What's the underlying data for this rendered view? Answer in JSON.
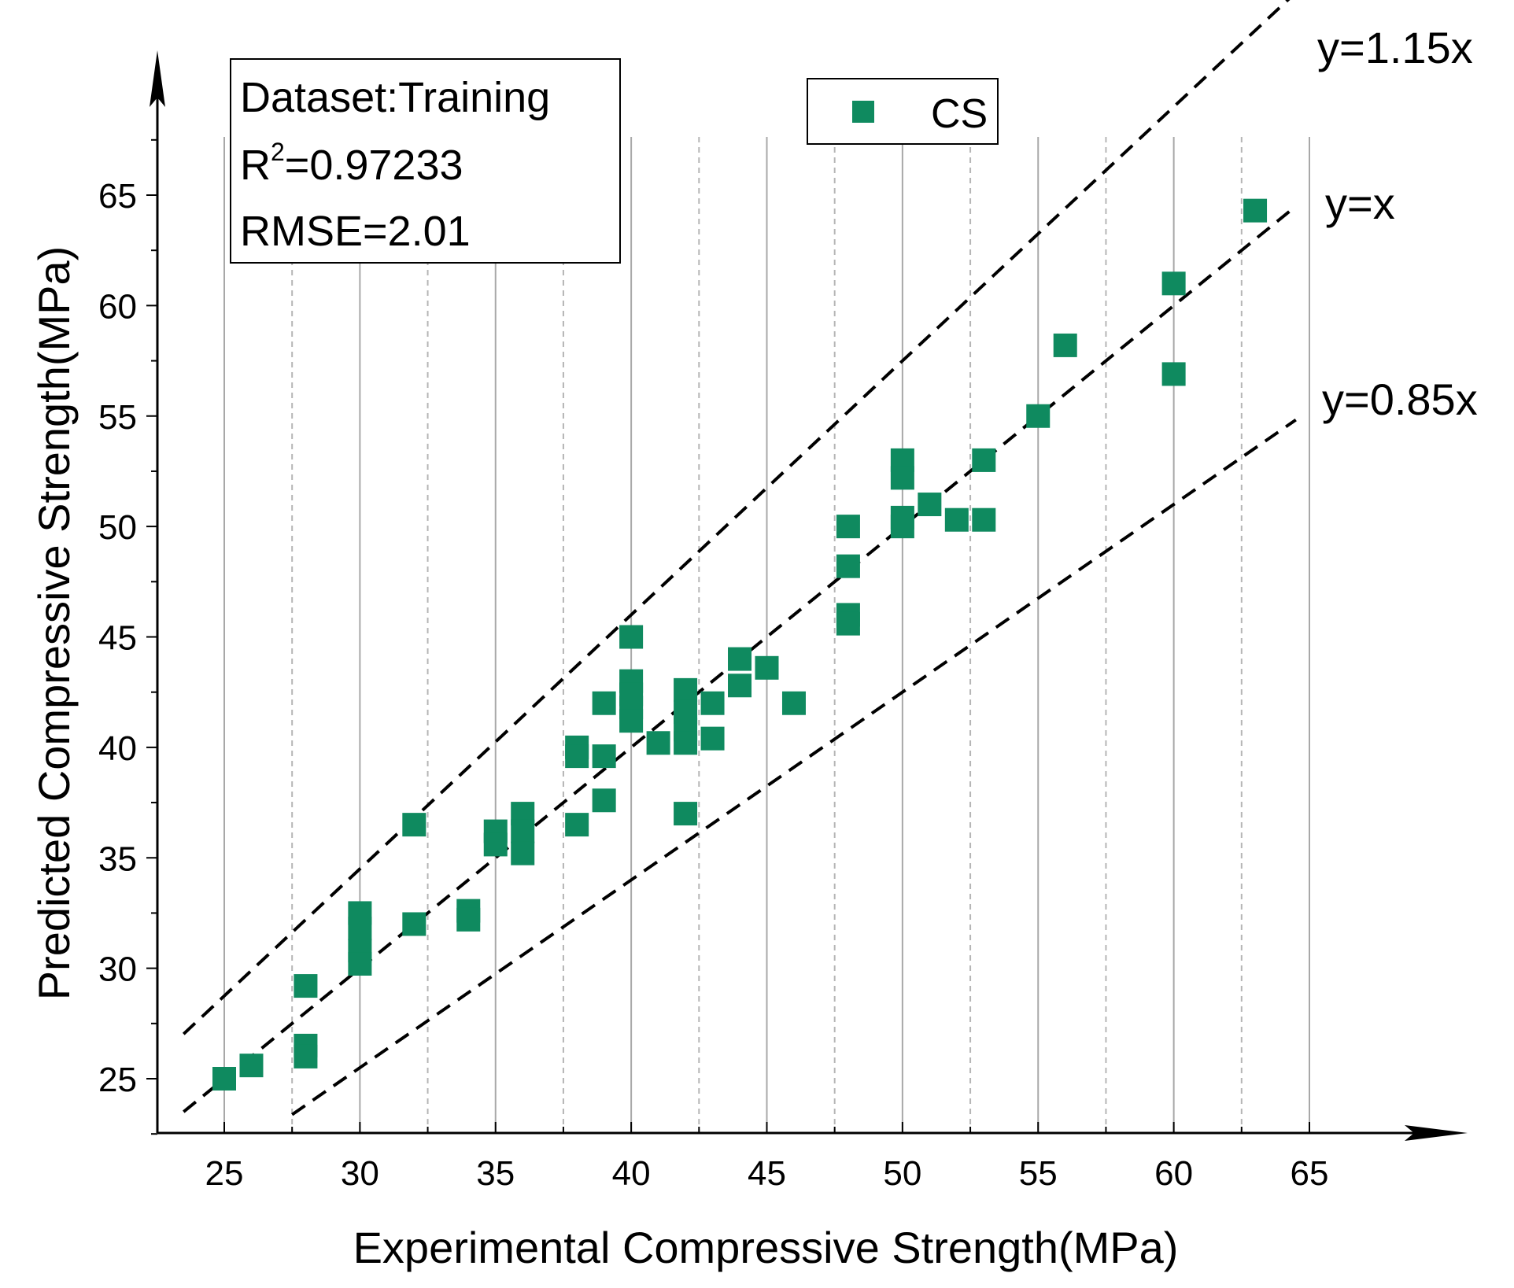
{
  "chart_data": {
    "type": "scatter",
    "title": "",
    "xlabel": "Experimental Compressive Strength(MPa)",
    "ylabel": "Predicted Compressive Strength(MPa)",
    "xlim": [
      22.5,
      67.5
    ],
    "ylim": [
      22.5,
      67.5
    ],
    "x_ticks": [
      25,
      30,
      35,
      40,
      45,
      50,
      55,
      60,
      65
    ],
    "y_ticks": [
      25,
      30,
      35,
      40,
      45,
      50,
      55,
      60,
      65
    ],
    "x_minor_ticks": [
      27.5,
      32.5,
      37.5,
      42.5,
      47.5,
      52.5,
      57.5,
      62.5
    ],
    "y_minor_ticks": [
      22.5,
      27.5,
      32.5,
      37.5,
      42.5,
      47.5,
      52.5,
      57.5,
      62.5,
      67.5
    ],
    "grid": true,
    "marker_color": "#0f8a5f",
    "legend": {
      "position": "top-center",
      "entries": [
        "CS"
      ]
    },
    "stats_box": {
      "dataset": "Dataset:Training",
      "r2_prefix": "R",
      "r2_sup": "2",
      "r2_value": "=0.97233",
      "rmse": "RMSE=2.01"
    },
    "reference_lines": [
      {
        "label": "y=1.15x",
        "slope": 1.15,
        "x_range": [
          23.5,
          64.5
        ]
      },
      {
        "label": "y=x",
        "slope": 1.0,
        "x_range": [
          23.5,
          64.5
        ]
      },
      {
        "label": "y=0.85x",
        "slope": 0.85,
        "x_range": [
          27.5,
          64.5
        ]
      }
    ],
    "series": [
      {
        "name": "CS",
        "points": [
          [
            25,
            25
          ],
          [
            26,
            25.6
          ],
          [
            28,
            29.2
          ],
          [
            28,
            26.5
          ],
          [
            28,
            26
          ],
          [
            30,
            32.5
          ],
          [
            30,
            31.8
          ],
          [
            30,
            30.8
          ],
          [
            30,
            30.2
          ],
          [
            32,
            36.5
          ],
          [
            32,
            32
          ],
          [
            34,
            32.6
          ],
          [
            34,
            32.2
          ],
          [
            35,
            36.2
          ],
          [
            35,
            35.6
          ],
          [
            36,
            37
          ],
          [
            36,
            36.2
          ],
          [
            36,
            35.2
          ],
          [
            38,
            40
          ],
          [
            38,
            39.6
          ],
          [
            38,
            36.5
          ],
          [
            39,
            42
          ],
          [
            39,
            39.6
          ],
          [
            39,
            37.6
          ],
          [
            40,
            45
          ],
          [
            40,
            43
          ],
          [
            40,
            42.4
          ],
          [
            40,
            41.8
          ],
          [
            40,
            41.2
          ],
          [
            41,
            40.2
          ],
          [
            42,
            42.6
          ],
          [
            42,
            41.6
          ],
          [
            42,
            40.8
          ],
          [
            42,
            40.2
          ],
          [
            42,
            37
          ],
          [
            43,
            42
          ],
          [
            43,
            40.4
          ],
          [
            44,
            44
          ],
          [
            44,
            42.8
          ],
          [
            45,
            43.6
          ],
          [
            46,
            42
          ],
          [
            48,
            50
          ],
          [
            48,
            48.2
          ],
          [
            48,
            46
          ],
          [
            48,
            45.6
          ],
          [
            50,
            53
          ],
          [
            50,
            52.2
          ],
          [
            50,
            50.4
          ],
          [
            50,
            50
          ],
          [
            51,
            51
          ],
          [
            52,
            50.3
          ],
          [
            53,
            53
          ],
          [
            53,
            50.3
          ],
          [
            55,
            55
          ],
          [
            56,
            58.2
          ],
          [
            60,
            61
          ],
          [
            60,
            56.9
          ],
          [
            63,
            64.3
          ]
        ]
      }
    ]
  }
}
